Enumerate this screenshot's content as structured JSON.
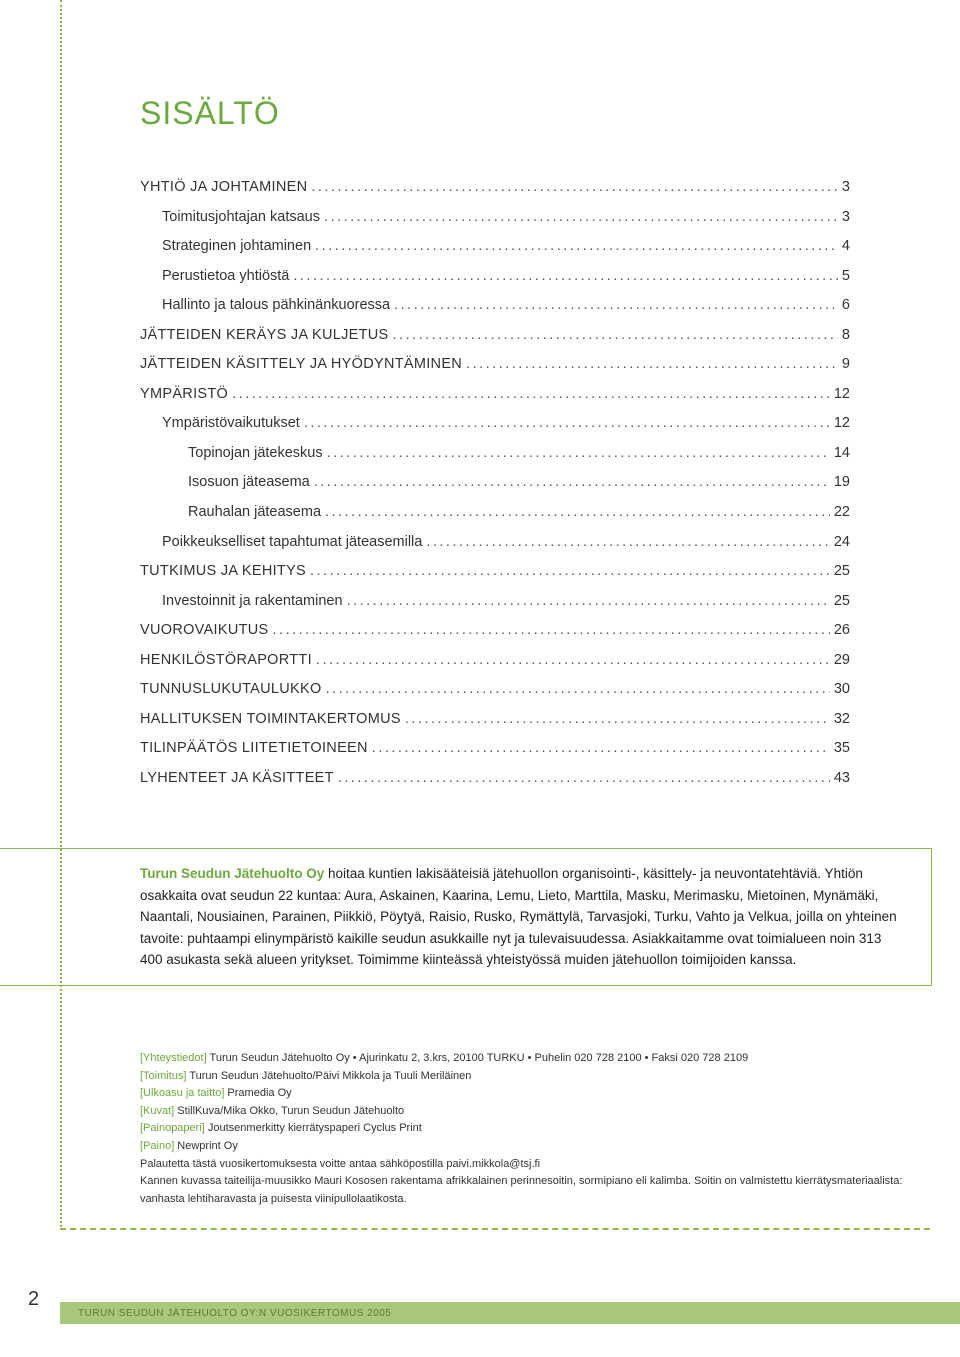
{
  "colors": {
    "green": "#6CAA3C",
    "lightGreen": "#A9C97A",
    "dotGreen": "#8FB949",
    "text": "#333333"
  },
  "title": "SISÄLTÖ",
  "toc": [
    {
      "label": "YHTIÖ JA JOHTAMINEN",
      "page": "3",
      "level": 0,
      "main": true
    },
    {
      "label": "Toimitusjohtajan katsaus",
      "page": "3",
      "level": 1
    },
    {
      "label": "Strateginen johtaminen",
      "page": "4",
      "level": 1
    },
    {
      "label": "Perustietoa yhtiöstä",
      "page": "5",
      "level": 1
    },
    {
      "label": "Hallinto ja talous pähkinänkuoressa",
      "page": "6",
      "level": 1
    },
    {
      "label": "JÄTTEIDEN KERÄYS JA KULJETUS",
      "page": "8",
      "level": 0,
      "main": true
    },
    {
      "label": "JÄTTEIDEN KÄSITTELY JA HYÖDYNTÄMINEN",
      "page": "9",
      "level": 0,
      "main": true
    },
    {
      "label": "YMPÄRISTÖ",
      "page": "12",
      "level": 0,
      "main": true
    },
    {
      "label": "Ympäristövaikutukset",
      "page": "12",
      "level": 1
    },
    {
      "label": "Topinojan jätekeskus",
      "page": "14",
      "level": 2
    },
    {
      "label": "Isosuon jäteasema",
      "page": "19",
      "level": 2
    },
    {
      "label": "Rauhalan jäteasema",
      "page": "22",
      "level": 2
    },
    {
      "label": "Poikkeukselliset tapahtumat jäteasemilla",
      "page": "24",
      "level": 1
    },
    {
      "label": "TUTKIMUS JA KEHITYS",
      "page": "25",
      "level": 0,
      "main": true
    },
    {
      "label": "Investoinnit ja rakentaminen",
      "page": "25",
      "level": 1
    },
    {
      "label": "VUOROVAIKUTUS",
      "page": "26",
      "level": 0,
      "main": true
    },
    {
      "label": "HENKILÖSTÖRAPORTTI",
      "page": "29",
      "level": 0,
      "main": true
    },
    {
      "label": "TUNNUSLUKUTAULUKKO",
      "page": "30",
      "level": 0,
      "main": true
    },
    {
      "label": "HALLITUKSEN TOIMINTAKERTOMUS",
      "page": "32",
      "level": 0,
      "main": true
    },
    {
      "label": "TILINPÄÄTÖS LIITETIETOINEEN",
      "page": "35",
      "level": 0,
      "main": true
    },
    {
      "label": "LYHENTEET JA KÄSITTEET",
      "page": "43",
      "level": 0,
      "main": true
    }
  ],
  "info": {
    "lead": "Turun Seudun Jätehuolto Oy",
    "body": " hoitaa kuntien lakisääteisiä jätehuollon organisointi-, käsittely- ja neuvontatehtäviä. Yhtiön osakkaita ovat seudun 22 kuntaa: Aura, Askainen, Kaarina, Lemu, Lieto, Marttila, Masku, Merimasku, Mietoinen, Mynämäki, Naantali, Nousiainen, Parainen, Piikkiö, Pöytyä, Raisio, Rusko, Rymättylä, Tarvasjoki, Turku, Vahto ja Velkua, joilla on yhteinen tavoite: puhtaampi elinympäristö kaikille seudun asukkaille nyt ja tulevaisuudessa. Asiakkaitamme ovat toimialueen noin 313 400 asukasta sekä alueen yritykset. Toimimme kiinteässä yhteistyössä muiden jätehuollon toimijoiden kanssa."
  },
  "credits": [
    {
      "label": "[Yhteystiedot]",
      "text": " Turun Seudun Jätehuolto Oy • Ajurinkatu 2, 3.krs, 20100 TURKU • Puhelin 020 728 2100 • Faksi 020 728 2109"
    },
    {
      "label": "[Toimitus]",
      "text": " Turun Seudun Jätehuolto/Päivi Mikkola ja Tuuli Meriläinen"
    },
    {
      "label": "[Ulkoasu ja taitto]",
      "text": " Pramedia Oy"
    },
    {
      "label": "[Kuvat]",
      "text": " StillKuva/Mika Okko, Turun Seudun Jätehuolto"
    },
    {
      "label": "[Painopaperi]",
      "text": " Joutsenmerkitty kierrätyspaperi Cyclus Print"
    },
    {
      "label": "[Paino]",
      "text": " Newprint Oy"
    },
    {
      "label": "",
      "text": "Palautetta tästä vuosikertomuksesta voitte antaa sähköpostilla paivi.mikkola@tsj.fi"
    },
    {
      "label": "",
      "text": "Kannen kuvassa taiteilija-muusikko Mauri Kososen rakentama afrikkalainen perinnesoitin, sormipiano eli kalimba. Soitin on valmistettu kierrätysmateriaalista: vanhasta lehtiharavasta ja puisesta viinipullolaatikosta."
    }
  ],
  "pageNumber": "2",
  "footer": "TURUN SEUDUN JÄTEHUOLTO OY:N VUOSIKERTOMUS 2005"
}
